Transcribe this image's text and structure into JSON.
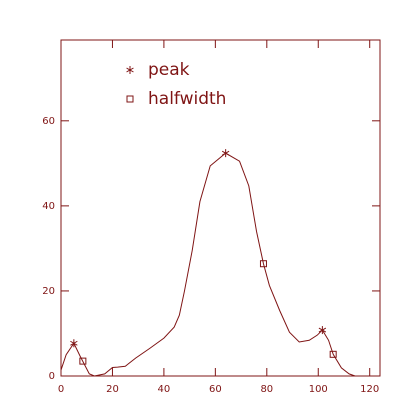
{
  "chart_data": {
    "type": "line",
    "xlim": [
      0,
      124
    ],
    "ylim": [
      0,
      79
    ],
    "xticks": [
      0,
      20,
      40,
      60,
      80,
      100,
      120
    ],
    "yticks": [
      0,
      20,
      40,
      60
    ],
    "legend": "top-left",
    "series": [
      {
        "kind": "line",
        "color": "#7f1414",
        "x": [
          0,
          2,
          5,
          7.4,
          11,
          13,
          17,
          20,
          22,
          25,
          29,
          34.5,
          40,
          44,
          46,
          48,
          51,
          54,
          58,
          64,
          69.4,
          73,
          76,
          78.7,
          81,
          85,
          88.8,
          92.6,
          96.5,
          99.6,
          101.6,
          104,
          105.8,
          109,
          112,
          114.3
        ],
        "values": [
          1.4,
          5,
          7.7,
          4.7,
          0.5,
          0,
          0.5,
          2,
          2.1,
          2.3,
          4.2,
          6.5,
          8.9,
          11.5,
          14.3,
          20,
          29.5,
          41,
          49.4,
          52.4,
          50.5,
          44.7,
          34,
          26.4,
          21.3,
          15.4,
          10.3,
          8,
          8.4,
          9.6,
          10.8,
          8.4,
          5.1,
          1.9,
          0.5,
          0
        ]
      },
      {
        "kind": "star",
        "name": "peak",
        "color": "#7f1414",
        "x": [
          5,
          64,
          101.6
        ],
        "values": [
          7.7,
          52.4,
          10.8
        ]
      },
      {
        "kind": "square",
        "name": "halfwidth",
        "color": "#7f1414",
        "x": [
          8.5,
          78.7,
          105.8
        ],
        "values": [
          3.5,
          26.4,
          5.1
        ]
      }
    ]
  }
}
